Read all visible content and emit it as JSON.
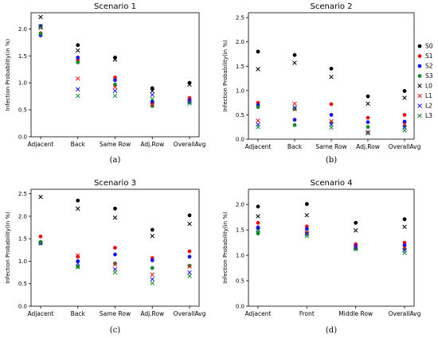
{
  "colors": {
    "S0": "#000000",
    "S1": "#e8141a",
    "S2": "#1616e6",
    "S3": "#13892f",
    "L0": "#000000",
    "L1": "#e8141a",
    "L2": "#1616e6",
    "L3": "#13892f"
  },
  "legend": {
    "placement": "right of panel (b)",
    "entries": [
      {
        "name": "S0",
        "marker": "circle",
        "color_key": "S0"
      },
      {
        "name": "S1",
        "marker": "circle",
        "color_key": "S1"
      },
      {
        "name": "S2",
        "marker": "circle",
        "color_key": "S2"
      },
      {
        "name": "S3",
        "marker": "circle",
        "color_key": "S3"
      },
      {
        "name": "L0",
        "marker": "x",
        "color_key": "L0"
      },
      {
        "name": "L1",
        "marker": "x",
        "color_key": "L1"
      },
      {
        "name": "L2",
        "marker": "x",
        "color_key": "L2"
      },
      {
        "name": "L3",
        "marker": "x",
        "color_key": "L3"
      }
    ]
  },
  "chart_data": [
    {
      "type": "scatter",
      "title": "Scenario 1",
      "caption": "(a)",
      "ylabel": "Infection Probability(in %)",
      "xlabel": "",
      "categories": [
        "Adjacent",
        "Back",
        "Same Row",
        "Adj.Row",
        "OverallAvg"
      ],
      "ylim": [
        0.0,
        2.3
      ],
      "yticks": [
        "0.0",
        "0.5",
        "1.0",
        "1.5",
        "2.0"
      ],
      "grid": false,
      "series": [
        {
          "name": "S0",
          "values": [
            2.05,
            1.7,
            1.47,
            0.9,
            1.0
          ]
        },
        {
          "name": "S1",
          "values": [
            1.92,
            1.42,
            1.1,
            0.62,
            0.72
          ]
        },
        {
          "name": "S2",
          "values": [
            1.88,
            1.47,
            1.05,
            0.65,
            0.68
          ]
        },
        {
          "name": "S3",
          "values": [
            1.91,
            1.38,
            0.97,
            0.57,
            0.64
          ]
        },
        {
          "name": "L0",
          "values": [
            2.22,
            1.6,
            1.43,
            0.85,
            0.97
          ]
        },
        {
          "name": "L1",
          "values": [
            2.02,
            1.08,
            0.92,
            0.6,
            0.66
          ]
        },
        {
          "name": "L2",
          "values": [
            2.05,
            0.88,
            0.85,
            0.78,
            0.65
          ]
        },
        {
          "name": "L3",
          "values": [
            2.03,
            0.76,
            0.76,
            0.7,
            0.62
          ]
        }
      ]
    },
    {
      "type": "scatter",
      "title": "Scenario 2",
      "caption": "(b)",
      "ylabel": "Infection Probability(in %)",
      "xlabel": "",
      "categories": [
        "Adjacent",
        "Back",
        "Same Row",
        "Adj.Row",
        "OverallAvg"
      ],
      "ylim": [
        0.0,
        2.6
      ],
      "yticks": [
        "0.0",
        "0.5",
        "1.0",
        "1.5",
        "2.0",
        "2.5"
      ],
      "grid": false,
      "series": [
        {
          "name": "S0",
          "values": [
            1.8,
            1.73,
            1.45,
            0.88,
            0.99
          ]
        },
        {
          "name": "S1",
          "values": [
            0.75,
            0.62,
            0.72,
            0.44,
            0.5
          ]
        },
        {
          "name": "S2",
          "values": [
            0.7,
            0.4,
            0.5,
            0.35,
            0.36
          ]
        },
        {
          "name": "S3",
          "values": [
            0.66,
            0.29,
            0.34,
            0.25,
            0.27
          ]
        },
        {
          "name": "L0",
          "values": [
            1.44,
            1.57,
            1.28,
            0.73,
            0.85
          ]
        },
        {
          "name": "L1",
          "values": [
            0.38,
            0.73,
            0.37,
            0.15,
            0.3
          ]
        },
        {
          "name": "L2",
          "values": [
            0.3,
            0.65,
            0.3,
            0.13,
            0.24
          ]
        },
        {
          "name": "L3",
          "values": [
            0.25,
            0.62,
            0.24,
            0.12,
            0.18
          ]
        }
      ]
    },
    {
      "type": "scatter",
      "title": "Scenario 3",
      "caption": "(c)",
      "ylabel": "Infection Probability(in %)",
      "xlabel": "",
      "categories": [
        "Adjacent",
        "Back",
        "Same Row",
        "Adj.Row",
        "OverallAvg"
      ],
      "ylim": [
        0.0,
        2.6
      ],
      "yticks": [
        "0.0",
        "0.5",
        "1.0",
        "1.5",
        "2.0",
        "2.5"
      ],
      "grid": false,
      "series": [
        {
          "name": "S0",
          "values": [
            1.42,
            2.35,
            2.17,
            1.7,
            2.02
          ]
        },
        {
          "name": "S1",
          "values": [
            1.55,
            1.1,
            1.3,
            1.07,
            1.22
          ]
        },
        {
          "name": "S2",
          "values": [
            1.4,
            1.0,
            1.15,
            1.02,
            1.1
          ]
        },
        {
          "name": "S3",
          "values": [
            1.43,
            0.88,
            0.95,
            0.85,
            0.9
          ]
        },
        {
          "name": "L0",
          "values": [
            2.43,
            2.17,
            1.97,
            1.56,
            1.83
          ]
        },
        {
          "name": "L1",
          "values": [
            1.4,
            1.13,
            0.93,
            0.7,
            0.88
          ]
        },
        {
          "name": "L2",
          "values": [
            1.4,
            0.95,
            0.82,
            0.6,
            0.75
          ]
        },
        {
          "name": "L3",
          "values": [
            1.4,
            0.87,
            0.75,
            0.51,
            0.67
          ]
        }
      ]
    },
    {
      "type": "scatter",
      "title": "Scenario 4",
      "caption": "(d)",
      "ylabel": "Infection Probability(in %)",
      "xlabel": "",
      "categories": [
        "Adjacent",
        "Front",
        "Middle Row",
        "OverallAvg"
      ],
      "ylim": [
        0.0,
        2.3
      ],
      "yticks": [
        "0.0",
        "0.5",
        "1.0",
        "1.5",
        "2.0"
      ],
      "grid": false,
      "series": [
        {
          "name": "S0",
          "values": [
            1.96,
            2.01,
            1.64,
            1.71
          ]
        },
        {
          "name": "S1",
          "values": [
            1.64,
            1.57,
            1.22,
            1.25
          ]
        },
        {
          "name": "S2",
          "values": [
            1.55,
            1.52,
            1.19,
            1.2
          ]
        },
        {
          "name": "S3",
          "values": [
            1.43,
            1.44,
            1.13,
            1.13
          ]
        },
        {
          "name": "L0",
          "values": [
            1.77,
            1.79,
            1.49,
            1.56
          ]
        },
        {
          "name": "L1",
          "values": [
            1.5,
            1.45,
            1.17,
            1.15
          ]
        },
        {
          "name": "L2",
          "values": [
            1.5,
            1.42,
            1.15,
            1.1
          ]
        },
        {
          "name": "L3",
          "values": [
            1.49,
            1.38,
            1.12,
            1.05
          ]
        }
      ]
    }
  ]
}
